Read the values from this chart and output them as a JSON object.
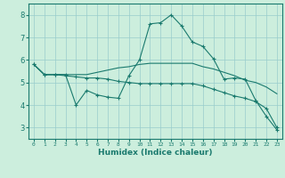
{
  "xlabel": "Humidex (Indice chaleur)",
  "bg_color": "#cceedd",
  "line_color": "#1a7a6e",
  "grid_color": "#99cccc",
  "xlim": [
    -0.5,
    23.5
  ],
  "ylim": [
    2.5,
    8.5
  ],
  "xticks": [
    0,
    1,
    2,
    3,
    4,
    5,
    6,
    7,
    8,
    9,
    10,
    11,
    12,
    13,
    14,
    15,
    16,
    17,
    18,
    19,
    20,
    21,
    22,
    23
  ],
  "yticks": [
    3,
    4,
    5,
    6,
    7,
    8
  ],
  "line1_x": [
    0,
    1,
    2,
    3,
    4,
    5,
    6,
    7,
    8,
    9,
    10,
    11,
    12,
    13,
    14,
    15,
    16,
    17,
    18,
    19,
    20,
    21,
    22,
    23
  ],
  "line1_y": [
    5.8,
    5.35,
    5.35,
    5.35,
    4.0,
    4.65,
    4.45,
    4.35,
    4.3,
    5.3,
    6.0,
    7.6,
    7.65,
    8.0,
    7.5,
    6.8,
    6.6,
    6.05,
    5.15,
    5.2,
    5.15,
    4.2,
    3.5,
    2.9
  ],
  "line2_x": [
    0,
    1,
    2,
    3,
    4,
    5,
    6,
    7,
    8,
    9,
    10,
    11,
    12,
    13,
    14,
    15,
    16,
    17,
    18,
    19,
    20,
    21,
    22,
    23
  ],
  "line2_y": [
    5.8,
    5.35,
    5.35,
    5.35,
    5.35,
    5.35,
    5.45,
    5.55,
    5.65,
    5.7,
    5.8,
    5.85,
    5.85,
    5.85,
    5.85,
    5.85,
    5.7,
    5.6,
    5.45,
    5.3,
    5.1,
    5.0,
    4.8,
    4.5
  ],
  "line3_x": [
    0,
    1,
    2,
    3,
    4,
    5,
    6,
    7,
    8,
    9,
    10,
    11,
    12,
    13,
    14,
    15,
    16,
    17,
    18,
    19,
    20,
    21,
    22,
    23
  ],
  "line3_y": [
    5.8,
    5.35,
    5.35,
    5.3,
    5.25,
    5.2,
    5.2,
    5.15,
    5.05,
    5.0,
    4.95,
    4.95,
    4.95,
    4.95,
    4.95,
    4.95,
    4.85,
    4.7,
    4.55,
    4.4,
    4.3,
    4.15,
    3.85,
    3.0
  ]
}
